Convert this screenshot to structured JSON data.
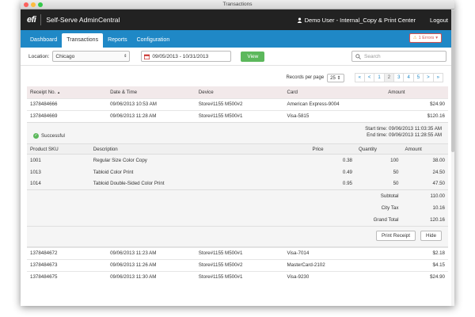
{
  "window_title": "Transactions",
  "header": {
    "logo": "efi",
    "app_name": "Self-Serve AdminCentral",
    "user": "Demo User - Internal_Copy & Print Center",
    "logout": "Logout"
  },
  "nav": {
    "tabs": [
      "Dashboard",
      "Transactions",
      "Reports",
      "Configuration"
    ],
    "active": "Transactions",
    "errors": "1 Errors"
  },
  "filters": {
    "location_label": "Location:",
    "location_value": "Chicago",
    "date_range": "09/05/2013 - 10/31/2013",
    "view_label": "View",
    "search_placeholder": "Search"
  },
  "pager": {
    "records_label": "Records per page",
    "records_value": "25",
    "pages": [
      "«",
      "<",
      "1",
      "2",
      "3",
      "4",
      "5",
      ">",
      "»"
    ],
    "current": "2"
  },
  "table": {
    "headers": [
      "Receipt No.",
      "Date & Time",
      "Device",
      "Card",
      "Amount"
    ],
    "sort_indicator": "▲",
    "rows_top": [
      [
        "1378484666",
        "09/06/2013 10:53 AM",
        "Store#1155 M500#2",
        "American Express-9004",
        "$24.90"
      ],
      [
        "1378484669",
        "09/06/2013 11:28 AM",
        "Store#1155 M500#1",
        "Visa-5815",
        "$120.16"
      ]
    ],
    "rows_bottom": [
      [
        "1378484672",
        "09/06/2013 11:23 AM",
        "Store#1155 M500#1",
        "Visa-7014",
        "$2.18"
      ],
      [
        "1378484673",
        "09/06/2013 11:26 AM",
        "Store#1155 M500#2",
        "MasterCard-2102",
        "$4.15"
      ],
      [
        "1378484675",
        "09/06/2013 11:30 AM",
        "Store#1155 M500#1",
        "Visa-9230",
        "$24.90"
      ]
    ]
  },
  "detail": {
    "status": "Successful",
    "start_time": "Start time: 09/06/2013 11:03:35 AM",
    "end_time": "End time: 09/06/2013 11:28:55 AM",
    "headers": [
      "Product SKU",
      "Description",
      "Price",
      "Quantity",
      "Amount"
    ],
    "items": [
      [
        "1001",
        "Regular Size Color Copy",
        "0.38",
        "100",
        "38.00"
      ],
      [
        "1013",
        "Tabloid Color Print",
        "0.49",
        "50",
        "24.50"
      ],
      [
        "1014",
        "Tabloid Double-Sided Color Print",
        "0.95",
        "50",
        "47.50"
      ]
    ],
    "totals": [
      [
        "Subtotal",
        "110.00"
      ],
      [
        "City Tax",
        "10.16"
      ],
      [
        "Grand Total",
        "120.16"
      ]
    ],
    "print_receipt": "Print Receipt",
    "hide": "Hide"
  }
}
